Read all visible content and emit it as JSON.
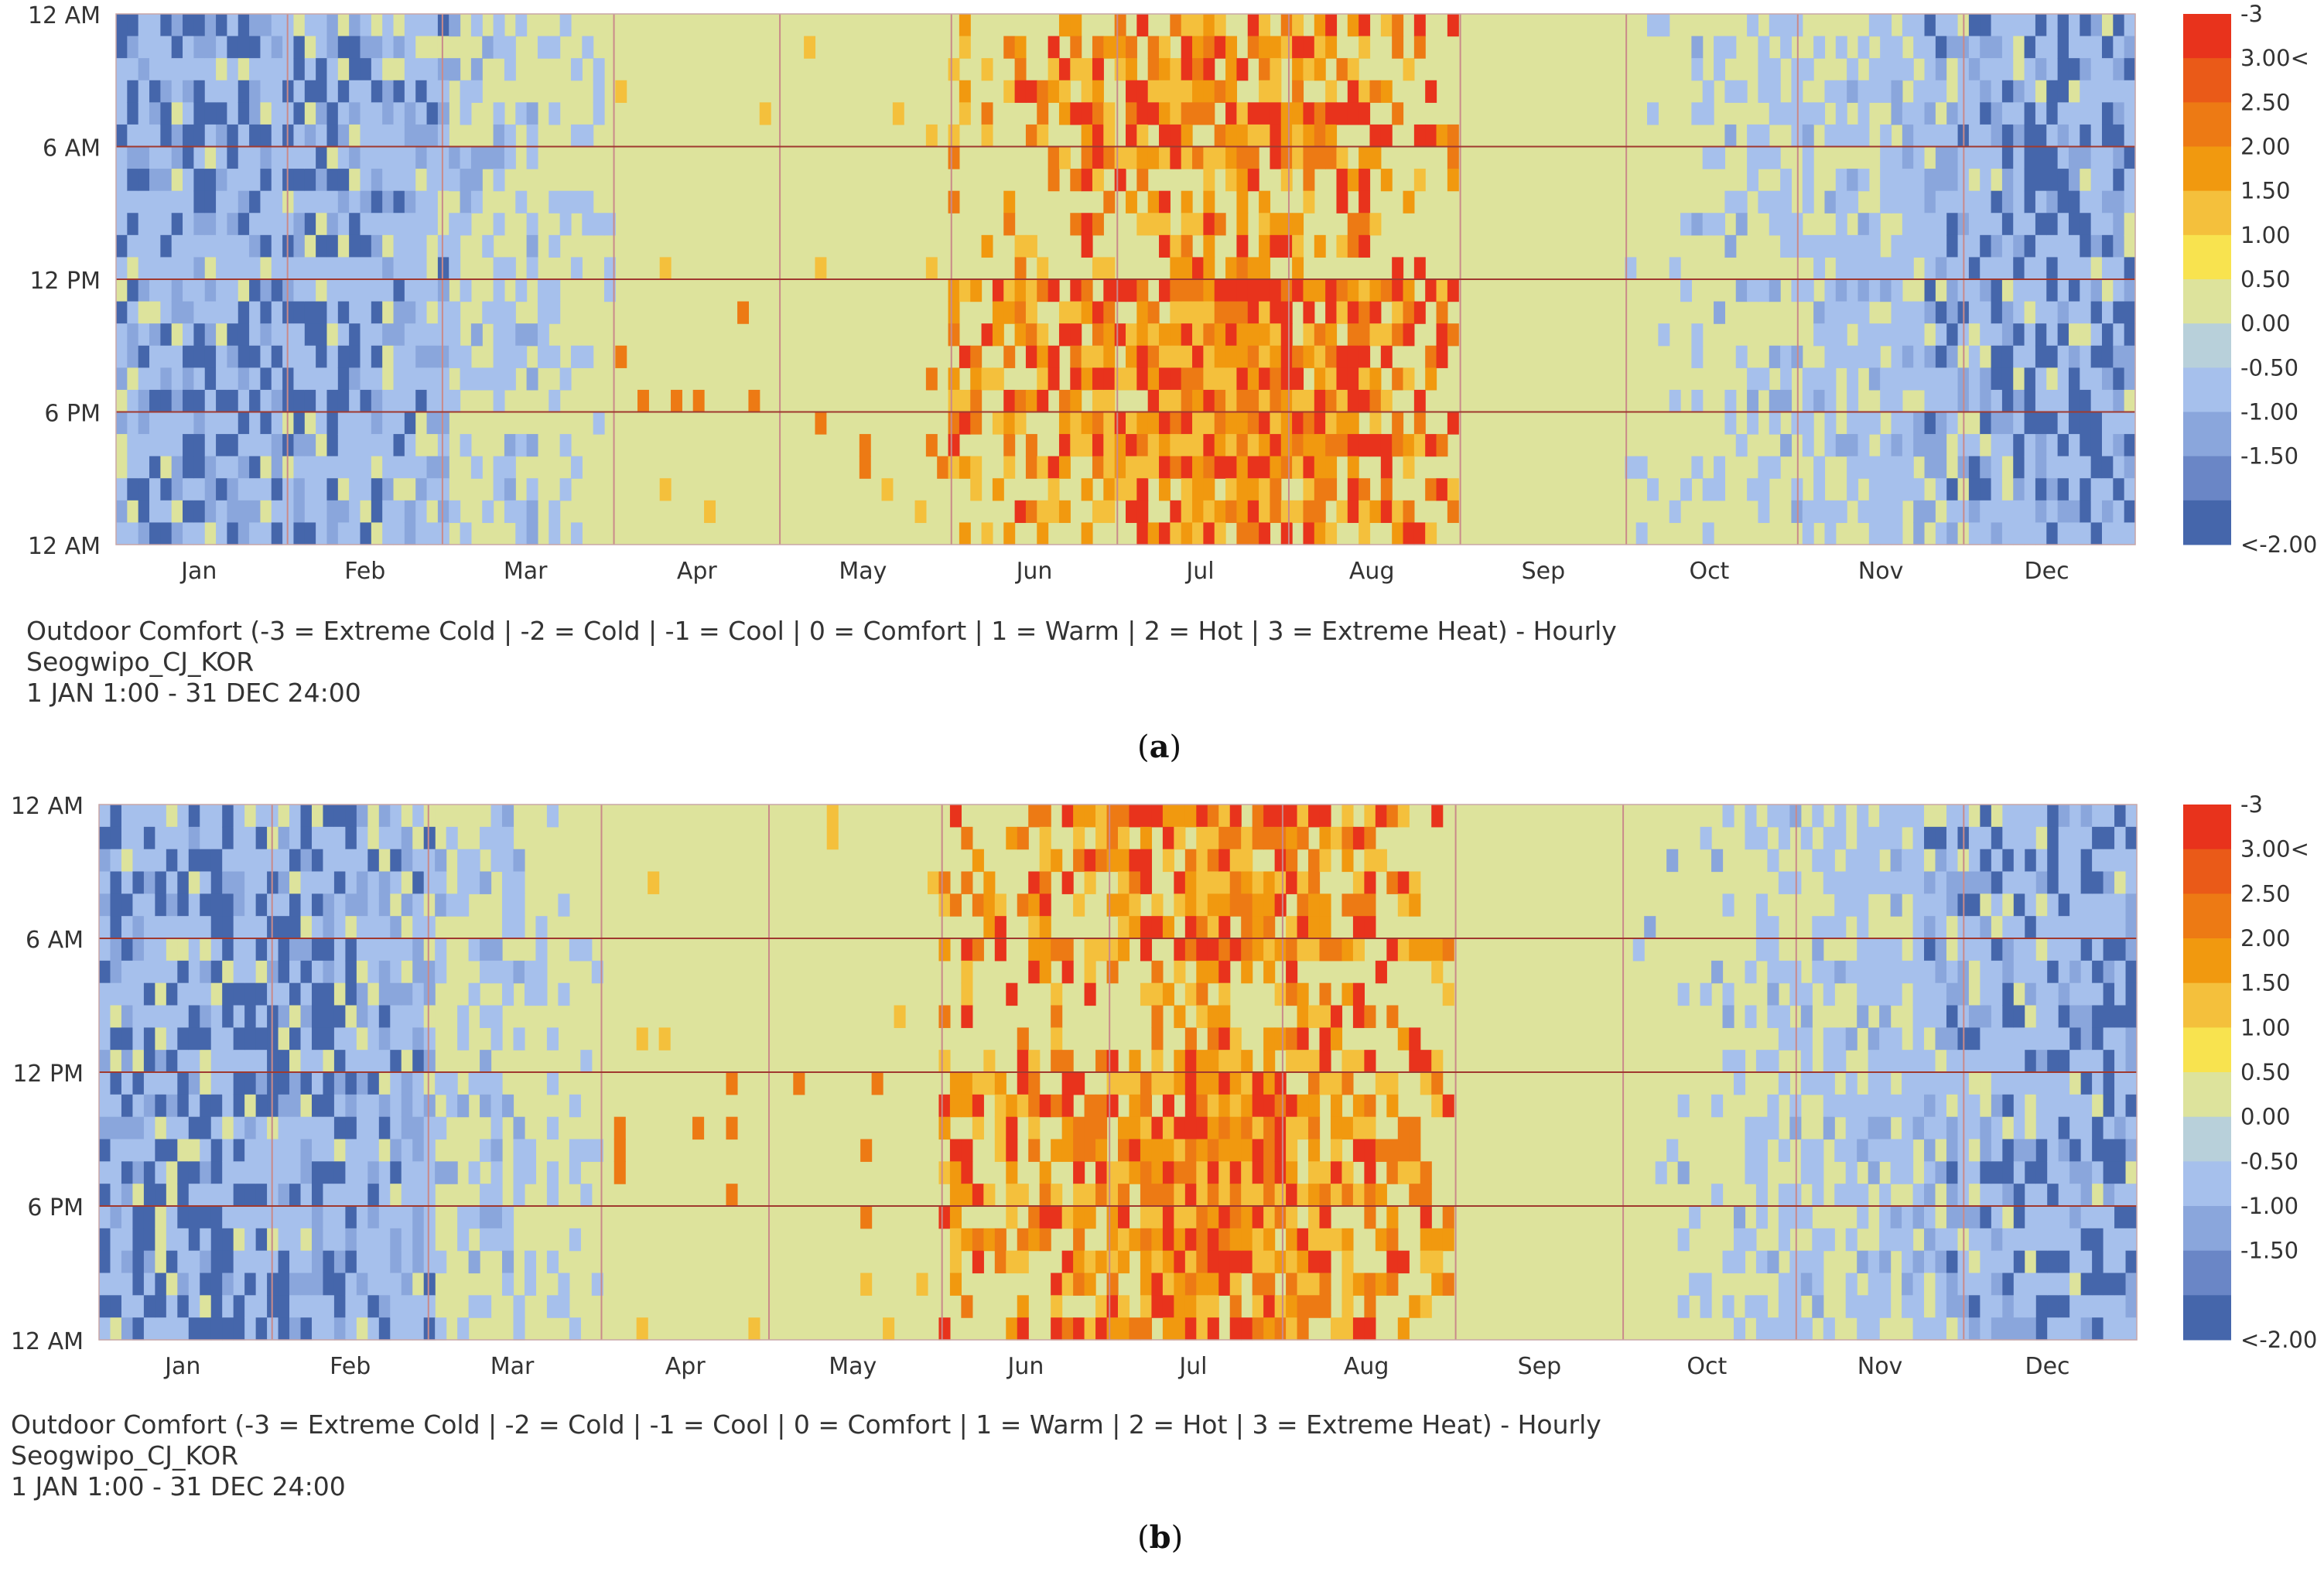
{
  "chart_data": [
    {
      "type": "heatmap",
      "panel_label": "a",
      "title": "Outdoor Comfort (-3 = Extreme Cold | -2 = Cold | -1 = Cool | 0 = Comfort | 1 = Warm | 2 = Hot | 3 = Extreme Heat) - Hourly",
      "location": "Seogwipo_CJ_KOR",
      "period": "1 JAN 1:00 - 31 DEC 24:00",
      "x_tick_labels": [
        "Jan",
        "Feb",
        "Mar",
        "Apr",
        "May",
        "Jun",
        "Jul",
        "Aug",
        "Sep",
        "Oct",
        "Nov",
        "Dec"
      ],
      "y_tick_labels": [
        "12 AM",
        "6 AM",
        "12 PM",
        "6 PM",
        "12 AM"
      ],
      "legend_labels": [
        "-3",
        "3.00<",
        "2.50",
        "2.00",
        "1.50",
        "1.00",
        "0.50",
        "0.00",
        "-0.50",
        "-1.00",
        "-1.50",
        "<-2.00"
      ],
      "legend_colors": [
        "#e8331c",
        "#ea5a18",
        "#ed7a14",
        "#f1990f",
        "#f4c03c",
        "#f8e34f",
        "#dde39c",
        "#b8d0da",
        "#a6c0ec",
        "#8aa6dc",
        "#6a86c6",
        "#4566ab"
      ],
      "description_of_values": "Hourly outdoor comfort category per day of year: cold/cool values (-1 to <-2) in Jan-Mar and Nov-Dec, comfort (0.5) in spring and autumn, warm to extreme heat (1.5 to 3) in Jun-Aug afternoons",
      "grid": true
    },
    {
      "type": "heatmap",
      "panel_label": "b",
      "title": "Outdoor Comfort (-3 = Extreme Cold | -2 = Cold | -1 = Cool | 0 = Comfort | 1 = Warm | 2 = Hot | 3 = Extreme Heat) - Hourly",
      "location": "Seogwipo_CJ_KOR",
      "period": "1 JAN 1:00 - 31 DEC 24:00",
      "x_tick_labels": [
        "Jan",
        "Feb",
        "Mar",
        "Apr",
        "May",
        "Jun",
        "Jul",
        "Aug",
        "Sep",
        "Oct",
        "Nov",
        "Dec"
      ],
      "y_tick_labels": [
        "12 AM",
        "6 AM",
        "12 PM",
        "6 PM",
        "12 AM"
      ],
      "legend_labels": [
        "-3",
        "3.00<",
        "2.50",
        "2.00",
        "1.50",
        "1.00",
        "0.50",
        "0.00",
        "-0.50",
        "-1.00",
        "-1.50",
        "<-2.00"
      ],
      "legend_colors": [
        "#e8331c",
        "#ea5a18",
        "#ed7a14",
        "#f1990f",
        "#f4c03c",
        "#f8e34f",
        "#dde39c",
        "#b8d0da",
        "#a6c0ec",
        "#8aa6dc",
        "#6a86c6",
        "#4566ab"
      ],
      "description_of_values": "Hourly outdoor comfort category per day of year: cold/cool values (-1 to <-2) in Jan-Mar and Nov-Dec, comfort (0.5) in spring and autumn, warm to extreme heat (1.5 to 3) in Jun-Aug afternoons",
      "grid": true
    }
  ]
}
